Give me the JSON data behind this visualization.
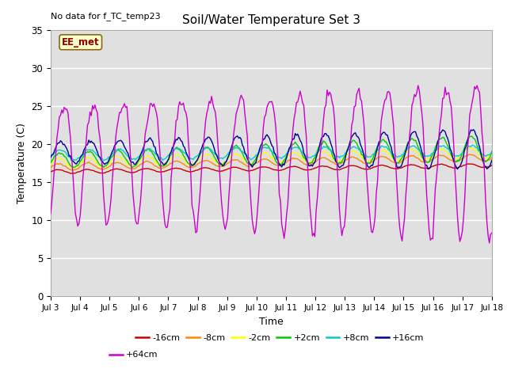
{
  "title": "Soil/Water Temperature Set 3",
  "xlabel": "Time",
  "ylabel": "Temperature (C)",
  "no_data_label": "No data for f_TC_temp23",
  "ee_met_label": "EE_met",
  "ylim": [
    0,
    35
  ],
  "bg_color": "#e0e0e0",
  "grid_color": "#ffffff",
  "x_tick_labels": [
    "Jul 3",
    "Jul 4",
    "Jul 5",
    "Jul 6",
    "Jul 7",
    "Jul 8",
    "Jul 9",
    "Jul 10",
    "Jul 11",
    "Jul 12",
    "Jul 13",
    "Jul 14",
    "Jul 15",
    "Jul 16",
    "Jul 17",
    "Jul 18"
  ],
  "series_names": [
    "-16cm",
    "-8cm",
    "-2cm",
    "+2cm",
    "+8cm",
    "+16cm",
    "+64cm"
  ],
  "series_colors": [
    "#cc0000",
    "#ff8800",
    "#ffff00",
    "#00cc00",
    "#00cccc",
    "#000099",
    "#cc00cc"
  ],
  "series_base": [
    16.4,
    17.0,
    17.5,
    17.9,
    18.6,
    18.9,
    18.5
  ],
  "series_amplitude": [
    0.25,
    0.45,
    0.65,
    0.95,
    0.7,
    1.4,
    7.5
  ],
  "series_trend": [
    0.055,
    0.085,
    0.095,
    0.105,
    0.04,
    0.035,
    0.0
  ],
  "series_amp_grow": [
    0.0,
    0.0,
    0.0,
    0.05,
    0.0,
    0.08,
    0.18
  ],
  "series_phase": [
    0.0,
    0.1,
    0.2,
    0.3,
    0.4,
    0.6,
    1.2
  ],
  "legend_row1": [
    "-16cm",
    "-8cm",
    "-2cm",
    "+2cm",
    "+8cm",
    "+16cm"
  ],
  "legend_row2": [
    "+64cm"
  ]
}
